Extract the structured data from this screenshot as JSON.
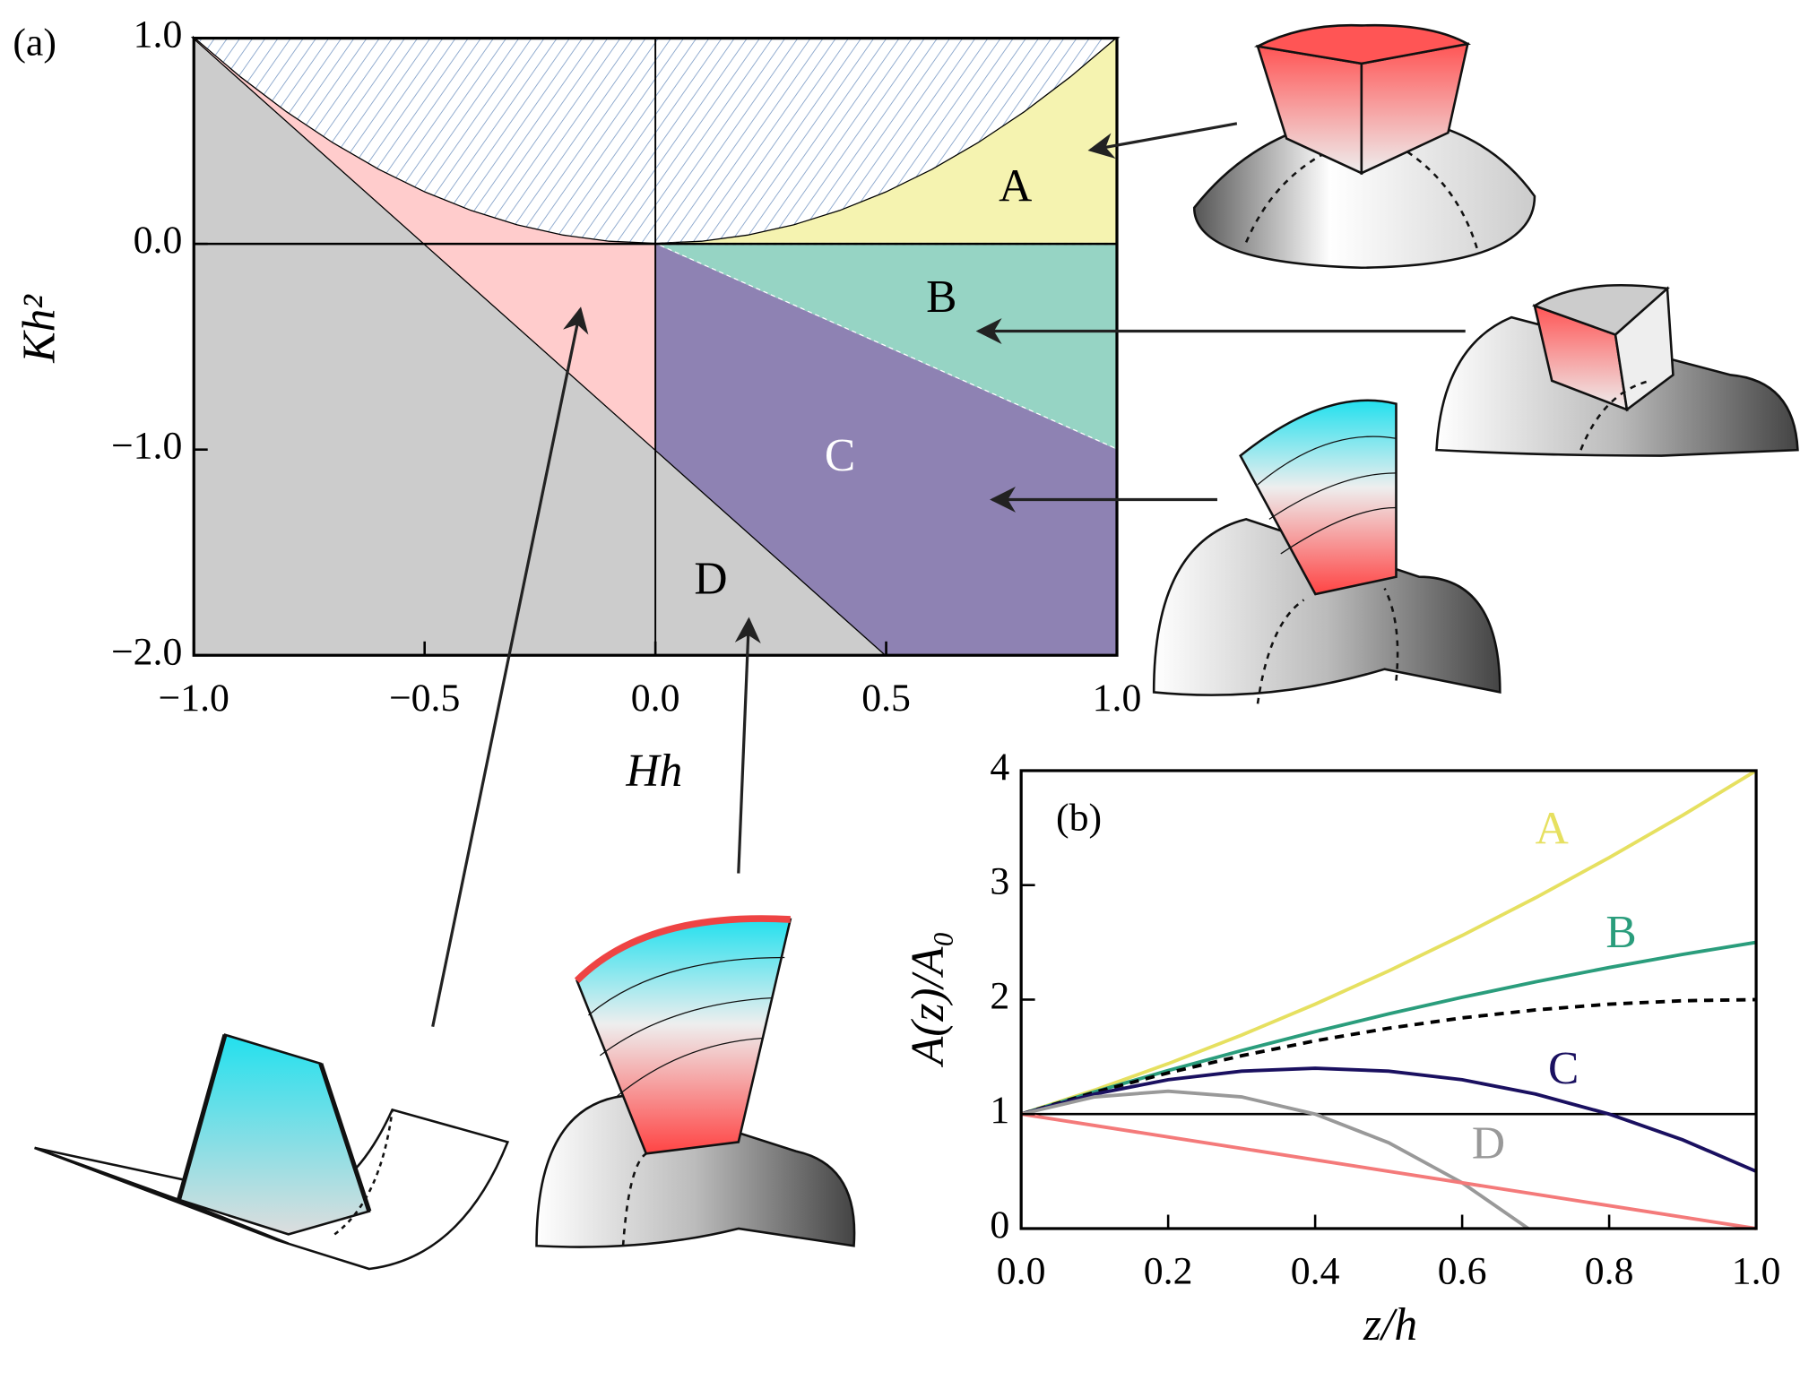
{
  "chart_data": [
    {
      "type": "area",
      "panel_label": "(a)",
      "xlabel": "Hh",
      "ylabel": "Kh²",
      "xlim": [
        -1,
        1
      ],
      "ylim": [
        -2,
        1
      ],
      "xticks": [
        {
          "value": -1,
          "label": "−1.0"
        },
        {
          "value": -0.5,
          "label": "−0.5"
        },
        {
          "value": 0,
          "label": "0.0"
        },
        {
          "value": 0.5,
          "label": "0.5"
        },
        {
          "value": 1,
          "label": "1.0"
        }
      ],
      "yticks": [
        {
          "value": 1,
          "label": "1.0"
        },
        {
          "value": 0,
          "label": "0.0"
        },
        {
          "value": -1,
          "label": "−1.0"
        },
        {
          "value": -2,
          "label": "−2.0"
        }
      ],
      "regions": [
        {
          "color": "#7f9ec7",
          "hatch": true,
          "x": [
            -1,
            -0.9,
            -0.8,
            -0.7,
            -0.6,
            -0.5,
            -0.4,
            -0.3,
            -0.2,
            -0.1,
            0,
            0.1,
            0.2,
            0.3,
            0.4,
            0.5,
            0.6,
            0.7,
            0.8,
            0.9,
            1
          ],
          "y": [
            1,
            0.81,
            0.64,
            0.49,
            0.36,
            0.25,
            0.16,
            0.09,
            0.04,
            0.01,
            0,
            0.01,
            0.04,
            0.09,
            0.16,
            0.25,
            0.36,
            0.49,
            0.64,
            0.81,
            1
          ]
        },
        {
          "name": "D",
          "color": "#cccccc",
          "x": [
            -1,
            0.5,
            -1
          ],
          "y": [
            1,
            -2,
            -2
          ]
        },
        {
          "color": "#ffcccc",
          "x": [
            -1,
            -0.9,
            -0.8,
            -0.7,
            -0.6,
            -0.5,
            -0.4,
            -0.3,
            -0.2,
            -0.1,
            0,
            0
          ],
          "y": [
            1,
            0.81,
            0.64,
            0.49,
            0.36,
            0.25,
            0.16,
            0.09,
            0.04,
            0.01,
            0,
            -1
          ]
        },
        {
          "name": "A",
          "color": "#f5f3b0",
          "x": [
            0,
            0.1,
            0.2,
            0.3,
            0.4,
            0.5,
            0.6,
            0.7,
            0.8,
            0.9,
            1,
            1
          ],
          "y": [
            0,
            0.01,
            0.04,
            0.09,
            0.16,
            0.25,
            0.36,
            0.49,
            0.64,
            0.81,
            1,
            0
          ]
        },
        {
          "name": "B",
          "color": "#96d4c4",
          "x": [
            0,
            1,
            1
          ],
          "y": [
            0,
            0,
            -1
          ]
        },
        {
          "name": "C",
          "color": "#8e82b3",
          "x": [
            0,
            1,
            1,
            0.5,
            0
          ],
          "y": [
            0,
            -1,
            -2,
            -2,
            -1
          ]
        }
      ]
    },
    {
      "type": "line",
      "panel_label": "(b)",
      "xlabel": "z/h",
      "ylabel": "A(z)/A₀",
      "xlim": [
        0,
        1
      ],
      "ylim": [
        0,
        4
      ],
      "xticks": [
        {
          "value": 0,
          "label": "0.0"
        },
        {
          "value": 0.2,
          "label": "0.2"
        },
        {
          "value": 0.4,
          "label": "0.4"
        },
        {
          "value": 0.6,
          "label": "0.6"
        },
        {
          "value": 0.8,
          "label": "0.8"
        },
        {
          "value": 1,
          "label": "1.0"
        }
      ],
      "yticks": [
        0,
        1,
        2,
        3,
        4
      ],
      "hline": 1,
      "series": [
        {
          "name": "A",
          "color": "#e6e060",
          "x": [
            0,
            0.1,
            0.2,
            0.3,
            0.4,
            0.5,
            0.6,
            0.7,
            0.8,
            0.9,
            1
          ],
          "values": [
            1,
            1.21,
            1.44,
            1.69,
            1.96,
            2.25,
            2.56,
            2.89,
            3.24,
            3.61,
            4
          ]
        },
        {
          "name": "B",
          "color": "#2a9d7c",
          "x": [
            0,
            0.1,
            0.2,
            0.3,
            0.4,
            0.5,
            0.6,
            0.7,
            0.8,
            0.9,
            1
          ],
          "values": [
            1,
            1.195,
            1.38,
            1.555,
            1.72,
            1.875,
            2.02,
            2.155,
            2.28,
            2.395,
            2.5
          ]
        },
        {
          "color": "#000000",
          "dash": true,
          "x": [
            0,
            0.1,
            0.2,
            0.3,
            0.4,
            0.5,
            0.6,
            0.7,
            0.8,
            0.9,
            1
          ],
          "values": [
            1,
            1.19,
            1.36,
            1.51,
            1.64,
            1.75,
            1.84,
            1.91,
            1.96,
            1.99,
            2
          ]
        },
        {
          "name": "C",
          "color": "#1a1060",
          "x": [
            0,
            0.1,
            0.2,
            0.3,
            0.4,
            0.5,
            0.6,
            0.7,
            0.8,
            0.9,
            1
          ],
          "values": [
            1,
            1.175,
            1.3,
            1.375,
            1.4,
            1.375,
            1.3,
            1.175,
            1,
            0.775,
            0.5
          ]
        },
        {
          "name": "D",
          "color": "#999999",
          "x": [
            0,
            0.1,
            0.2,
            0.3,
            0.4,
            0.5,
            0.6,
            0.69
          ],
          "values": [
            1,
            1.15,
            1.2,
            1.15,
            1,
            0.75,
            0.4,
            0
          ]
        },
        {
          "color": "#f47a7a",
          "x": [
            0,
            1
          ],
          "values": [
            1,
            0
          ]
        }
      ]
    }
  ]
}
